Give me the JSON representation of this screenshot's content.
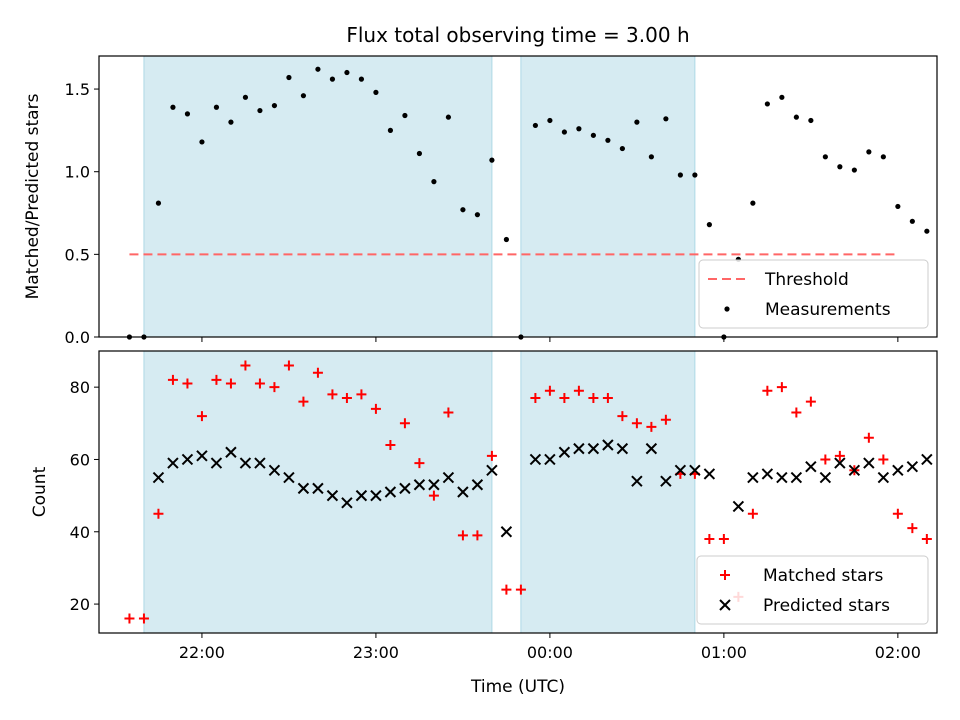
{
  "title": "Flux total observing time = 3.00 h",
  "xlabel": "Time (UTC)",
  "x_ticks": [
    "22:00",
    "23:00",
    "00:00",
    "01:00",
    "02:00"
  ],
  "colors": {
    "shade": "#add8e6",
    "threshold": "#ff6666",
    "measurements": "#000000",
    "matched": "#ff0000",
    "predicted": "#000000"
  },
  "chart_data": [
    {
      "type": "scatter",
      "ylabel": "Matched/Predicted stars",
      "ylim": [
        0.0,
        1.7
      ],
      "yticks": [
        "0.0",
        "0.5",
        "1.0",
        "1.5"
      ],
      "xlim": [
        "21:28",
        "02:10"
      ],
      "shaded_intervals": [
        [
          "21:40",
          "23:40"
        ],
        [
          "23:50",
          "00:50"
        ]
      ],
      "legend": {
        "placement": "lower-right",
        "entries": [
          "Threshold",
          "Measurements"
        ]
      },
      "threshold": {
        "name": "Threshold",
        "value": 0.5,
        "x_range": [
          "21:35",
          "02:00"
        ]
      },
      "series": [
        {
          "name": "Measurements",
          "points": [
            [
              "21:35",
              0.0
            ],
            [
              "21:40",
              0.0
            ],
            [
              "21:45",
              0.81
            ],
            [
              "21:50",
              1.39
            ],
            [
              "21:55",
              1.35
            ],
            [
              "22:00",
              1.18
            ],
            [
              "22:05",
              1.39
            ],
            [
              "22:10",
              1.3
            ],
            [
              "22:15",
              1.45
            ],
            [
              "22:20",
              1.37
            ],
            [
              "22:25",
              1.4
            ],
            [
              "22:30",
              1.57
            ],
            [
              "22:35",
              1.46
            ],
            [
              "22:40",
              1.62
            ],
            [
              "22:45",
              1.56
            ],
            [
              "22:50",
              1.6
            ],
            [
              "22:55",
              1.56
            ],
            [
              "23:00",
              1.48
            ],
            [
              "23:05",
              1.25
            ],
            [
              "23:10",
              1.34
            ],
            [
              "23:15",
              1.11
            ],
            [
              "23:20",
              0.94
            ],
            [
              "23:25",
              1.33
            ],
            [
              "23:30",
              0.77
            ],
            [
              "23:35",
              0.74
            ],
            [
              "23:40",
              1.07
            ],
            [
              "23:45",
              0.59
            ],
            [
              "23:50",
              0.0
            ],
            [
              "23:55",
              1.28
            ],
            [
              "00:00",
              1.31
            ],
            [
              "00:05",
              1.24
            ],
            [
              "00:10",
              1.26
            ],
            [
              "00:15",
              1.22
            ],
            [
              "00:20",
              1.19
            ],
            [
              "00:25",
              1.14
            ],
            [
              "00:30",
              1.3
            ],
            [
              "00:35",
              1.09
            ],
            [
              "00:40",
              1.32
            ],
            [
              "00:45",
              0.98
            ],
            [
              "00:50",
              0.98
            ],
            [
              "00:55",
              0.68
            ],
            [
              "01:00",
              0.0
            ],
            [
              "01:05",
              0.47
            ],
            [
              "01:10",
              0.81
            ],
            [
              "01:15",
              1.41
            ],
            [
              "01:20",
              1.45
            ],
            [
              "01:25",
              1.33
            ],
            [
              "01:30",
              1.31
            ],
            [
              "01:35",
              1.09
            ],
            [
              "01:40",
              1.03
            ],
            [
              "01:45",
              1.01
            ],
            [
              "01:50",
              1.12
            ],
            [
              "01:55",
              1.09
            ],
            [
              "02:00",
              0.79
            ],
            [
              "02:05",
              0.7
            ],
            [
              "02:10",
              0.64
            ]
          ]
        }
      ]
    },
    {
      "type": "scatter",
      "ylabel": "Count",
      "ylim": [
        12,
        90
      ],
      "yticks": [
        "20",
        "40",
        "60",
        "80"
      ],
      "xlim": [
        "21:28",
        "02:10"
      ],
      "shaded_intervals": [
        [
          "21:40",
          "23:40"
        ],
        [
          "23:50",
          "00:50"
        ]
      ],
      "legend": {
        "placement": "lower-right",
        "entries": [
          "Matched stars",
          "Predicted stars"
        ]
      },
      "series": [
        {
          "name": "Matched stars",
          "marker": "plus",
          "points": [
            [
              "21:35",
              16
            ],
            [
              "21:40",
              16
            ],
            [
              "21:45",
              45
            ],
            [
              "21:50",
              82
            ],
            [
              "21:55",
              81
            ],
            [
              "22:00",
              72
            ],
            [
              "22:05",
              82
            ],
            [
              "22:10",
              81
            ],
            [
              "22:15",
              86
            ],
            [
              "22:20",
              81
            ],
            [
              "22:25",
              80
            ],
            [
              "22:30",
              86
            ],
            [
              "22:35",
              76
            ],
            [
              "22:40",
              84
            ],
            [
              "22:45",
              78
            ],
            [
              "22:50",
              77
            ],
            [
              "22:55",
              78
            ],
            [
              "23:00",
              74
            ],
            [
              "23:05",
              64
            ],
            [
              "23:10",
              70
            ],
            [
              "23:15",
              59
            ],
            [
              "23:20",
              50
            ],
            [
              "23:25",
              73
            ],
            [
              "23:30",
              39
            ],
            [
              "23:35",
              39
            ],
            [
              "23:40",
              61
            ],
            [
              "23:45",
              24
            ],
            [
              "23:50",
              24
            ],
            [
              "23:55",
              77
            ],
            [
              "00:00",
              79
            ],
            [
              "00:05",
              77
            ],
            [
              "00:10",
              79
            ],
            [
              "00:15",
              77
            ],
            [
              "00:20",
              77
            ],
            [
              "00:25",
              72
            ],
            [
              "00:30",
              70
            ],
            [
              "00:35",
              69
            ],
            [
              "00:40",
              71
            ],
            [
              "00:45",
              56
            ],
            [
              "00:50",
              56
            ],
            [
              "00:55",
              38
            ],
            [
              "01:00",
              38
            ],
            [
              "01:05",
              22
            ],
            [
              "01:10",
              45
            ],
            [
              "01:15",
              79
            ],
            [
              "01:20",
              80
            ],
            [
              "01:25",
              73
            ],
            [
              "01:30",
              76
            ],
            [
              "01:35",
              60
            ],
            [
              "01:40",
              61
            ],
            [
              "01:45",
              57
            ],
            [
              "01:50",
              66
            ],
            [
              "01:55",
              60
            ],
            [
              "02:00",
              45
            ],
            [
              "02:05",
              41
            ],
            [
              "02:10",
              38
            ]
          ]
        },
        {
          "name": "Predicted stars",
          "marker": "x",
          "points": [
            [
              "21:45",
              55
            ],
            [
              "21:50",
              59
            ],
            [
              "21:55",
              60
            ],
            [
              "22:00",
              61
            ],
            [
              "22:05",
              59
            ],
            [
              "22:10",
              62
            ],
            [
              "22:15",
              59
            ],
            [
              "22:20",
              59
            ],
            [
              "22:25",
              57
            ],
            [
              "22:30",
              55
            ],
            [
              "22:35",
              52
            ],
            [
              "22:40",
              52
            ],
            [
              "22:45",
              50
            ],
            [
              "22:50",
              48
            ],
            [
              "22:55",
              50
            ],
            [
              "23:00",
              50
            ],
            [
              "23:05",
              51
            ],
            [
              "23:10",
              52
            ],
            [
              "23:15",
              53
            ],
            [
              "23:20",
              53
            ],
            [
              "23:25",
              55
            ],
            [
              "23:30",
              51
            ],
            [
              "23:35",
              53
            ],
            [
              "23:40",
              57
            ],
            [
              "23:45",
              40
            ],
            [
              "23:55",
              60
            ],
            [
              "00:00",
              60
            ],
            [
              "00:05",
              62
            ],
            [
              "00:10",
              63
            ],
            [
              "00:15",
              63
            ],
            [
              "00:20",
              64
            ],
            [
              "00:25",
              63
            ],
            [
              "00:30",
              54
            ],
            [
              "00:35",
              63
            ],
            [
              "00:40",
              54
            ],
            [
              "00:45",
              57
            ],
            [
              "00:50",
              57
            ],
            [
              "00:55",
              56
            ],
            [
              "01:05",
              47
            ],
            [
              "01:10",
              55
            ],
            [
              "01:15",
              56
            ],
            [
              "01:20",
              55
            ],
            [
              "01:25",
              55
            ],
            [
              "01:30",
              58
            ],
            [
              "01:35",
              55
            ],
            [
              "01:40",
              59
            ],
            [
              "01:45",
              57
            ],
            [
              "01:50",
              59
            ],
            [
              "01:55",
              55
            ],
            [
              "02:00",
              57
            ],
            [
              "02:05",
              58
            ],
            [
              "02:10",
              60
            ]
          ]
        }
      ]
    }
  ]
}
